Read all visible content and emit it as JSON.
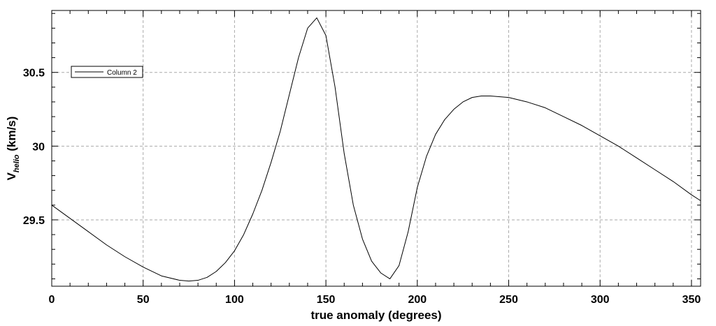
{
  "chart_data": {
    "type": "line",
    "title": "",
    "xlabel": "true anomaly (degrees)",
    "ylabel": {
      "main": "V",
      "subscript": "helio",
      "unit": " (km/s)"
    },
    "xlim": [
      0,
      355
    ],
    "ylim": [
      29.05,
      30.92
    ],
    "xticks": [
      0,
      50,
      100,
      150,
      200,
      250,
      300,
      350
    ],
    "xtick_labels": [
      "0",
      "50",
      "100",
      "150",
      "200",
      "250",
      "300",
      "350"
    ],
    "yticks": [
      29.5,
      30,
      30.5
    ],
    "ytick_labels": [
      "29.5",
      "30",
      "30.5"
    ],
    "grid": true,
    "legend": {
      "position": "top-left",
      "entries": [
        "Column 2"
      ]
    },
    "series": [
      {
        "name": "Column 2",
        "color": "#000000",
        "x": [
          0,
          10,
          20,
          30,
          40,
          50,
          60,
          70,
          75,
          80,
          85,
          90,
          95,
          100,
          105,
          110,
          115,
          120,
          125,
          130,
          135,
          140,
          145,
          150,
          155,
          160,
          165,
          170,
          175,
          180,
          185,
          190,
          195,
          200,
          205,
          210,
          215,
          220,
          225,
          230,
          235,
          240,
          250,
          260,
          270,
          280,
          290,
          300,
          310,
          320,
          330,
          340,
          350,
          355
        ],
        "values": [
          29.6,
          29.51,
          29.42,
          29.33,
          29.25,
          29.18,
          29.12,
          29.09,
          29.085,
          29.09,
          29.11,
          29.15,
          29.21,
          29.29,
          29.4,
          29.54,
          29.7,
          29.89,
          30.1,
          30.35,
          30.6,
          30.8,
          30.87,
          30.75,
          30.4,
          29.95,
          29.6,
          29.37,
          29.22,
          29.14,
          29.1,
          29.19,
          29.42,
          29.72,
          29.93,
          30.08,
          30.18,
          30.25,
          30.3,
          30.33,
          30.34,
          30.34,
          30.33,
          30.3,
          30.26,
          30.2,
          30.14,
          30.07,
          30.0,
          29.92,
          29.84,
          29.76,
          29.67,
          29.63
        ]
      }
    ]
  }
}
